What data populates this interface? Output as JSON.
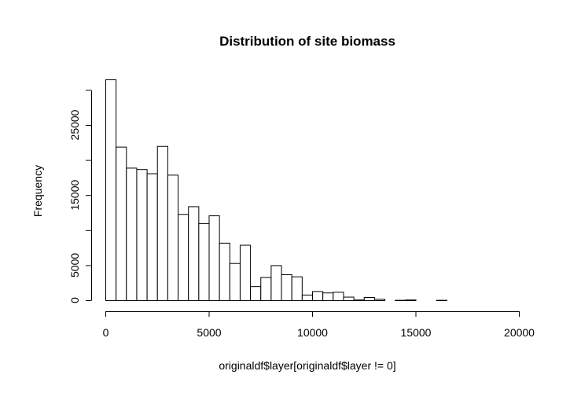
{
  "chart_data": {
    "type": "bar",
    "title": "Distribution of site biomass",
    "xlabel": "originaldf$layer[originaldf$layer != 0]",
    "ylabel": "Frequency",
    "bin_width": 500,
    "bin_start": 0,
    "values": [
      31500,
      21900,
      18900,
      18700,
      18100,
      22000,
      17900,
      12300,
      13400,
      11000,
      12100,
      8200,
      5300,
      7900,
      2000,
      3300,
      5000,
      3700,
      3400,
      800,
      1300,
      1100,
      1200,
      500,
      100,
      450,
      200,
      0,
      50,
      100,
      0,
      0,
      50,
      0,
      0,
      0,
      0,
      0,
      0
    ],
    "xlim": [
      0,
      20000
    ],
    "ylim": [
      0,
      31500
    ],
    "x_ticks": [
      0,
      5000,
      10000,
      15000,
      20000
    ],
    "y_ticks": [
      0,
      5000,
      15000,
      25000
    ],
    "x_tick_labels": [
      "0",
      "5000",
      "10000",
      "15000",
      "20000"
    ],
    "y_tick_labels": [
      "0",
      "5000",
      "15000",
      "25000"
    ],
    "grid": false,
    "bar_fill": "#ffffff",
    "bar_stroke": "#000000"
  }
}
